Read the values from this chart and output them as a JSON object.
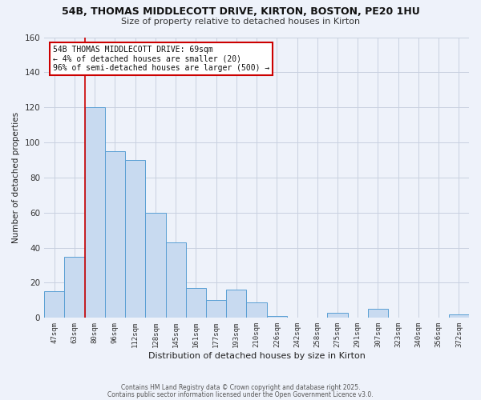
{
  "title": "54B, THOMAS MIDDLECOTT DRIVE, KIRTON, BOSTON, PE20 1HU",
  "subtitle": "Size of property relative to detached houses in Kirton",
  "xlabel": "Distribution of detached houses by size in Kirton",
  "ylabel": "Number of detached properties",
  "bar_color": "#c8daf0",
  "bar_edge_color": "#5a9fd4",
  "bg_color": "#eef2fa",
  "grid_color": "#c8d0e0",
  "categories": [
    "47sqm",
    "63sqm",
    "80sqm",
    "96sqm",
    "112sqm",
    "128sqm",
    "145sqm",
    "161sqm",
    "177sqm",
    "193sqm",
    "210sqm",
    "226sqm",
    "242sqm",
    "258sqm",
    "275sqm",
    "291sqm",
    "307sqm",
    "323sqm",
    "340sqm",
    "356sqm",
    "372sqm"
  ],
  "values": [
    15,
    35,
    120,
    95,
    90,
    60,
    43,
    17,
    10,
    16,
    9,
    1,
    0,
    0,
    3,
    0,
    5,
    0,
    0,
    0,
    2
  ],
  "vline_color": "#cc0000",
  "annotation_title": "54B THOMAS MIDDLECOTT DRIVE: 69sqm",
  "annotation_line1": "← 4% of detached houses are smaller (20)",
  "annotation_line2": "96% of semi-detached houses are larger (500) →",
  "annotation_box_color": "#ffffff",
  "annotation_box_edge": "#cc0000",
  "footer1": "Contains HM Land Registry data © Crown copyright and database right 2025.",
  "footer2": "Contains public sector information licensed under the Open Government Licence v3.0.",
  "ylim": [
    0,
    160
  ],
  "yticks": [
    0,
    20,
    40,
    60,
    80,
    100,
    120,
    140,
    160
  ]
}
